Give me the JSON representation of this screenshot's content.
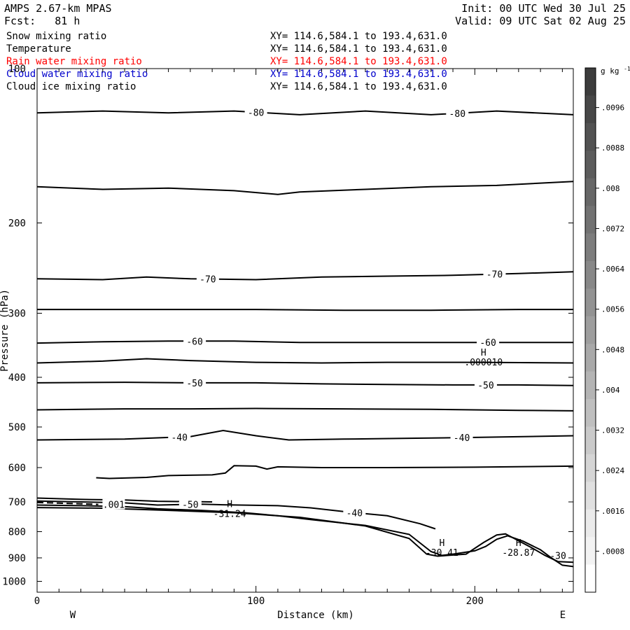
{
  "header": {
    "model": "AMPS 2.67-km MPAS",
    "forecast": "Fcst:   81 h",
    "init": "Init: 00 UTC Wed 30 Jul 25",
    "valid": "Valid: 09 UTC Sat 02 Aug 25"
  },
  "fields": [
    {
      "name": "Snow mixing ratio",
      "xy": "XY= 114.6,584.1 to 193.4,631.0",
      "color": "#000000"
    },
    {
      "name": "Temperature",
      "xy": "XY= 114.6,584.1 to 193.4,631.0",
      "color": "#000000"
    },
    {
      "name": "Rain water mixing ratio",
      "xy": "XY= 114.6,584.1 to 193.4,631.0",
      "color": "#ff0000"
    },
    {
      "name": "Cloud water mixing ratio",
      "xy": "XY= 114.6,584.1 to 193.4,631.0",
      "color": "#0000cc"
    },
    {
      "name": "Cloud ice mixing ratio",
      "xy": "XY= 114.6,584.1 to 193.4,631.0",
      "color": "#000000"
    }
  ],
  "chart_data": {
    "type": "contour-cross-section",
    "xlabel": "Distance (km)",
    "ylabel": "Pressure (hPa)",
    "xlim": [
      0,
      245
    ],
    "ylim": [
      1050,
      100
    ],
    "x_ticks": [
      "0",
      "100",
      "200"
    ],
    "y_ticks": [
      "100",
      "200",
      "300",
      "400",
      "500",
      "600",
      "700",
      "800",
      "900",
      "1000"
    ],
    "x_end_labels": {
      "left": "W",
      "right": "E"
    },
    "colorbar": {
      "units": "g kg",
      "units_sup": "-1",
      "labels": [
        ".0096",
        ".0088",
        ".008",
        ".0072",
        ".0064",
        ".0056",
        ".0048",
        ".004",
        ".0032",
        ".0024",
        ".0016",
        ".0008"
      ],
      "colors": [
        "#3c3c3c",
        "#474747",
        "#525252",
        "#5c5c5c",
        "#676767",
        "#727272",
        "#7d7d7d",
        "#888888",
        "#939393",
        "#9e9e9e",
        "#a9a9a9",
        "#b4b4b4",
        "#bfbfbf",
        "#cacaca",
        "#d5d5d5",
        "#e0e0e0",
        "#ebebeb",
        "#f3f3f3",
        "#ffffff"
      ]
    },
    "temperature_contours": [
      {
        "points": [
          [
            0,
            122
          ],
          [
            30,
            121
          ],
          [
            60,
            122
          ],
          [
            90,
            121
          ],
          [
            120,
            123
          ],
          [
            150,
            121
          ],
          [
            180,
            123
          ],
          [
            210,
            121
          ],
          [
            245,
            123
          ]
        ],
        "labels": [
          {
            "text": "-80",
            "x": 100
          },
          {
            "text": "-80",
            "x": 192
          }
        ]
      },
      {
        "points": [
          [
            0,
            170
          ],
          [
            30,
            172
          ],
          [
            60,
            171
          ],
          [
            90,
            173
          ],
          [
            110,
            176
          ],
          [
            120,
            174
          ],
          [
            150,
            172
          ],
          [
            180,
            170
          ],
          [
            210,
            169
          ],
          [
            245,
            166
          ]
        ],
        "labels": []
      },
      {
        "points": [
          [
            0,
            257
          ],
          [
            30,
            258
          ],
          [
            50,
            255
          ],
          [
            70,
            257
          ],
          [
            100,
            258
          ],
          [
            130,
            255
          ],
          [
            160,
            254
          ],
          [
            190,
            253
          ],
          [
            220,
            251
          ],
          [
            245,
            249
          ]
        ],
        "labels": [
          {
            "text": "-70",
            "x": 78
          },
          {
            "text": "-70",
            "x": 209
          }
        ]
      },
      {
        "points": [
          [
            0,
            295
          ],
          [
            40,
            295
          ],
          [
            70,
            295
          ],
          [
            100,
            295
          ],
          [
            140,
            296
          ],
          [
            180,
            296
          ],
          [
            220,
            295
          ],
          [
            245,
            295
          ]
        ],
        "labels": []
      },
      {
        "points": [
          [
            0,
            343
          ],
          [
            30,
            341
          ],
          [
            60,
            340
          ],
          [
            90,
            340
          ],
          [
            120,
            342
          ],
          [
            150,
            342
          ],
          [
            180,
            342
          ],
          [
            210,
            342
          ],
          [
            245,
            342
          ]
        ],
        "labels": [
          {
            "text": "-60",
            "x": 72
          },
          {
            "text": "-60",
            "x": 206
          }
        ]
      },
      {
        "points": [
          [
            0,
            375
          ],
          [
            30,
            372
          ],
          [
            50,
            368
          ],
          [
            70,
            371
          ],
          [
            100,
            374
          ],
          [
            130,
            375
          ],
          [
            160,
            374
          ],
          [
            200,
            374
          ],
          [
            245,
            375
          ]
        ],
        "labels": []
      },
      {
        "points": [
          [
            0,
            410
          ],
          [
            40,
            409
          ],
          [
            70,
            410
          ],
          [
            100,
            410
          ],
          [
            130,
            412
          ],
          [
            160,
            413
          ],
          [
            190,
            414
          ],
          [
            220,
            414
          ],
          [
            245,
            415
          ]
        ],
        "labels": [
          {
            "text": "-50",
            "x": 72
          },
          {
            "text": "-50",
            "x": 205
          }
        ]
      },
      {
        "points": [
          [
            0,
            463
          ],
          [
            40,
            461
          ],
          [
            70,
            461
          ],
          [
            100,
            460
          ],
          [
            140,
            461
          ],
          [
            180,
            462
          ],
          [
            220,
            464
          ],
          [
            245,
            465
          ]
        ],
        "labels": []
      },
      {
        "points": [
          [
            0,
            530
          ],
          [
            40,
            528
          ],
          [
            70,
            522
          ],
          [
            85,
            508
          ],
          [
            100,
            520
          ],
          [
            115,
            530
          ],
          [
            140,
            528
          ],
          [
            170,
            526
          ],
          [
            200,
            524
          ],
          [
            245,
            520
          ]
        ],
        "labels": [
          {
            "text": "-40",
            "x": 65
          },
          {
            "text": "-40",
            "x": 194
          }
        ]
      },
      {
        "points": [
          [
            27,
            628
          ],
          [
            33,
            630
          ],
          [
            50,
            627
          ],
          [
            60,
            622
          ],
          [
            80,
            620
          ],
          [
            86,
            615
          ],
          [
            90,
            595
          ],
          [
            100,
            596
          ],
          [
            105,
            604
          ],
          [
            110,
            598
          ],
          [
            130,
            600
          ],
          [
            160,
            600
          ],
          [
            200,
            599
          ],
          [
            245,
            596
          ]
        ],
        "labels": []
      }
    ],
    "lower_contours": [
      {
        "points": [
          [
            0,
            688
          ],
          [
            20,
            692
          ],
          [
            40,
            694
          ],
          [
            55,
            698
          ],
          [
            80,
            700
          ]
        ],
        "labels": []
      },
      {
        "points": [
          [
            0,
            697
          ],
          [
            20,
            700
          ],
          [
            40,
            703
          ],
          [
            55,
            710
          ],
          [
            75,
            707
          ],
          [
            85,
            709
          ],
          [
            110,
            712
          ],
          [
            125,
            719
          ],
          [
            140,
            731
          ],
          [
            160,
            745
          ],
          [
            175,
            772
          ],
          [
            182,
            790
          ]
        ],
        "labels": [
          {
            "text": "-50",
            "x": 70
          },
          {
            "text": "-40",
            "x": 145
          }
        ]
      },
      {
        "points": [
          [
            0,
            710
          ],
          [
            20,
            712
          ],
          [
            40,
            715
          ],
          [
            55,
            722
          ],
          [
            75,
            727
          ],
          [
            95,
            735
          ],
          [
            110,
            745
          ],
          [
            125,
            758
          ],
          [
            150,
            778
          ],
          [
            170,
            810
          ],
          [
            180,
            875
          ],
          [
            185,
            890
          ],
          [
            190,
            885
          ],
          [
            200,
            872
          ],
          [
            205,
            855
          ],
          [
            210,
            828
          ],
          [
            215,
            815
          ],
          [
            222,
            835
          ],
          [
            230,
            868
          ],
          [
            235,
            900
          ],
          [
            240,
            930
          ],
          [
            245,
            936
          ]
        ],
        "labels": []
      },
      {
        "points": [
          [
            0,
            718
          ],
          [
            30,
            720
          ],
          [
            60,
            727
          ],
          [
            90,
            735
          ],
          [
            120,
            750
          ],
          [
            150,
            780
          ],
          [
            170,
            825
          ],
          [
            178,
            885
          ],
          [
            183,
            893
          ],
          [
            196,
            885
          ],
          [
            204,
            840
          ],
          [
            210,
            812
          ],
          [
            214,
            808
          ],
          [
            218,
            825
          ],
          [
            226,
            860
          ],
          [
            232,
            890
          ],
          [
            238,
            915
          ],
          [
            245,
            918
          ]
        ],
        "labels": []
      }
    ],
    "ice_contours": [
      {
        "points": [
          [
            0,
            702
          ],
          [
            10,
            704
          ],
          [
            20,
            706
          ],
          [
            28,
            708
          ]
        ],
        "labels": [
          {
            "text": ".001",
            "x": 35
          }
        ]
      }
    ],
    "highs": [
      {
        "label": "H",
        "value": ".000010",
        "x": 204,
        "p": 363
      },
      {
        "label": "H",
        "value": "-31.24",
        "x": 88,
        "p": 717
      },
      {
        "label": "H",
        "value": "-30.41",
        "x": 185,
        "p": 853
      },
      {
        "label": "H",
        "value": "-28.87",
        "x": 220,
        "p": 853
      }
    ],
    "region_labels": [
      {
        "text": "-30",
        "x": 238,
        "p": 904
      }
    ]
  }
}
